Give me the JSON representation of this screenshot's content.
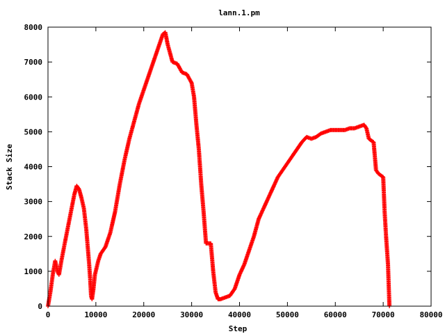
{
  "chart_data": {
    "type": "scatter",
    "title": "lann.1.pm",
    "xlabel": "Step",
    "ylabel": "Stack Size",
    "xlim": [
      0,
      80000
    ],
    "ylim": [
      0,
      8000
    ],
    "xticks": [
      0,
      10000,
      20000,
      30000,
      40000,
      50000,
      60000,
      70000,
      80000
    ],
    "yticks": [
      0,
      1000,
      2000,
      3000,
      4000,
      5000,
      6000,
      7000,
      8000
    ],
    "grid": false,
    "legend": "none",
    "marker": "plus",
    "series": [
      {
        "color": "#ff0000",
        "points": [
          [
            0,
            0
          ],
          [
            500,
            400
          ],
          [
            1000,
            900
          ],
          [
            1500,
            1300
          ],
          [
            2000,
            1000
          ],
          [
            2300,
            900
          ],
          [
            2800,
            1300
          ],
          [
            3500,
            1800
          ],
          [
            4500,
            2500
          ],
          [
            5500,
            3200
          ],
          [
            6000,
            3450
          ],
          [
            6500,
            3350
          ],
          [
            7000,
            3100
          ],
          [
            7500,
            2800
          ],
          [
            8000,
            2200
          ],
          [
            8300,
            1700
          ],
          [
            8600,
            1200
          ],
          [
            8800,
            800
          ],
          [
            9000,
            300
          ],
          [
            9200,
            200
          ],
          [
            9500,
            500
          ],
          [
            9800,
            900
          ],
          [
            10500,
            1300
          ],
          [
            11000,
            1500
          ],
          [
            12000,
            1700
          ],
          [
            13000,
            2100
          ],
          [
            14000,
            2700
          ],
          [
            15000,
            3500
          ],
          [
            16000,
            4200
          ],
          [
            17000,
            4800
          ],
          [
            18000,
            5300
          ],
          [
            19000,
            5800
          ],
          [
            20000,
            6200
          ],
          [
            21000,
            6600
          ],
          [
            22000,
            7000
          ],
          [
            23000,
            7400
          ],
          [
            24000,
            7800
          ],
          [
            24500,
            7850
          ],
          [
            25000,
            7500
          ],
          [
            26000,
            7000
          ],
          [
            27000,
            6950
          ],
          [
            28000,
            6700
          ],
          [
            29000,
            6650
          ],
          [
            30000,
            6400
          ],
          [
            30500,
            6000
          ],
          [
            31000,
            5200
          ],
          [
            31500,
            4500
          ],
          [
            32000,
            3500
          ],
          [
            32500,
            2700
          ],
          [
            33000,
            1800
          ],
          [
            34000,
            1800
          ],
          [
            34500,
            1000
          ],
          [
            35000,
            400
          ],
          [
            35500,
            200
          ],
          [
            36000,
            200
          ],
          [
            37000,
            250
          ],
          [
            38000,
            300
          ],
          [
            39000,
            500
          ],
          [
            40000,
            900
          ],
          [
            41000,
            1200
          ],
          [
            42000,
            1600
          ],
          [
            43000,
            2000
          ],
          [
            44000,
            2500
          ],
          [
            45000,
            2800
          ],
          [
            46000,
            3100
          ],
          [
            47000,
            3400
          ],
          [
            48000,
            3700
          ],
          [
            49000,
            3900
          ],
          [
            50000,
            4100
          ],
          [
            51000,
            4300
          ],
          [
            52000,
            4500
          ],
          [
            53000,
            4700
          ],
          [
            54000,
            4850
          ],
          [
            55000,
            4800
          ],
          [
            56000,
            4850
          ],
          [
            57000,
            4950
          ],
          [
            58000,
            5000
          ],
          [
            59000,
            5050
          ],
          [
            60000,
            5050
          ],
          [
            61000,
            5050
          ],
          [
            62000,
            5050
          ],
          [
            63000,
            5100
          ],
          [
            64000,
            5100
          ],
          [
            65000,
            5150
          ],
          [
            66000,
            5200
          ],
          [
            66500,
            5100
          ],
          [
            67000,
            4800
          ],
          [
            68000,
            4700
          ],
          [
            68500,
            3900
          ],
          [
            69000,
            3800
          ],
          [
            70000,
            3700
          ],
          [
            70300,
            2700
          ],
          [
            70600,
            2000
          ],
          [
            71000,
            1200
          ],
          [
            71200,
            400
          ],
          [
            71300,
            0
          ]
        ]
      }
    ]
  }
}
